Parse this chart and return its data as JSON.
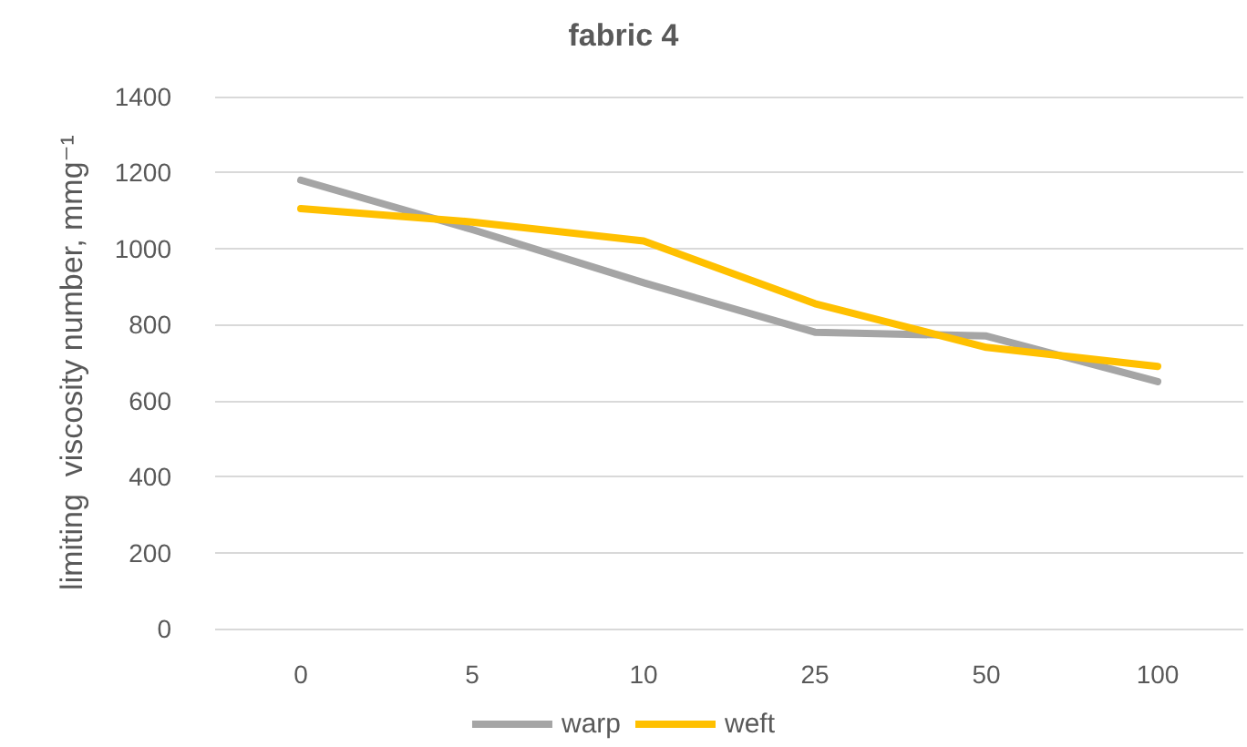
{
  "chart_data": {
    "type": "line",
    "title": "fabric 4",
    "ylabel": "limiting  viscosity number, mmg⁻¹",
    "categories": [
      "0",
      "5",
      "10",
      "25",
      "50",
      "100"
    ],
    "series": [
      {
        "name": "warp",
        "color": "#a5a5a5",
        "values": [
          1180,
          1050,
          910,
          780,
          770,
          650
        ]
      },
      {
        "name": "weft",
        "color": "#ffc000",
        "values": [
          1105,
          1070,
          1020,
          855,
          740,
          690
        ]
      }
    ],
    "ylim": [
      0,
      1400
    ],
    "yticks": [
      0,
      200,
      400,
      600,
      800,
      1000,
      1200,
      1400
    ],
    "grid": "y",
    "legend": "bottom",
    "marker": "none",
    "line_style": "solid"
  }
}
